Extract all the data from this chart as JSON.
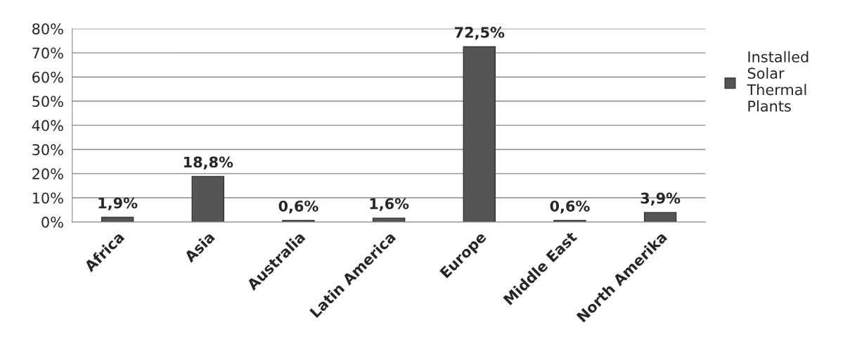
{
  "chart_data": {
    "type": "bar",
    "categories": [
      "Africa",
      "Asia",
      "Australia",
      "Latin America",
      "Europe",
      "Middle East",
      "North Amerika"
    ],
    "series": [
      {
        "name": "Installed Solar Thermal Plants",
        "color": "#555555",
        "values": [
          1.9,
          18.8,
          0.6,
          1.6,
          72.5,
          0.6,
          3.9
        ],
        "value_labels": [
          "1,9%",
          "18,8%",
          "0,6%",
          "1,6%",
          "72,5%",
          "0,6%",
          "3,9%"
        ]
      }
    ],
    "ylim": [
      0,
      80
    ],
    "yticks": [
      {
        "value": 0,
        "label": "0%"
      },
      {
        "value": 10,
        "label": "10%"
      },
      {
        "value": 20,
        "label": "20%"
      },
      {
        "value": 30,
        "label": "30%"
      },
      {
        "value": 40,
        "label": "40%"
      },
      {
        "value": 50,
        "label": "50%"
      },
      {
        "value": 60,
        "label": "60%"
      },
      {
        "value": 70,
        "label": "70%"
      },
      {
        "value": 80,
        "label": "80%"
      }
    ],
    "grid": "y",
    "legend": "right"
  }
}
